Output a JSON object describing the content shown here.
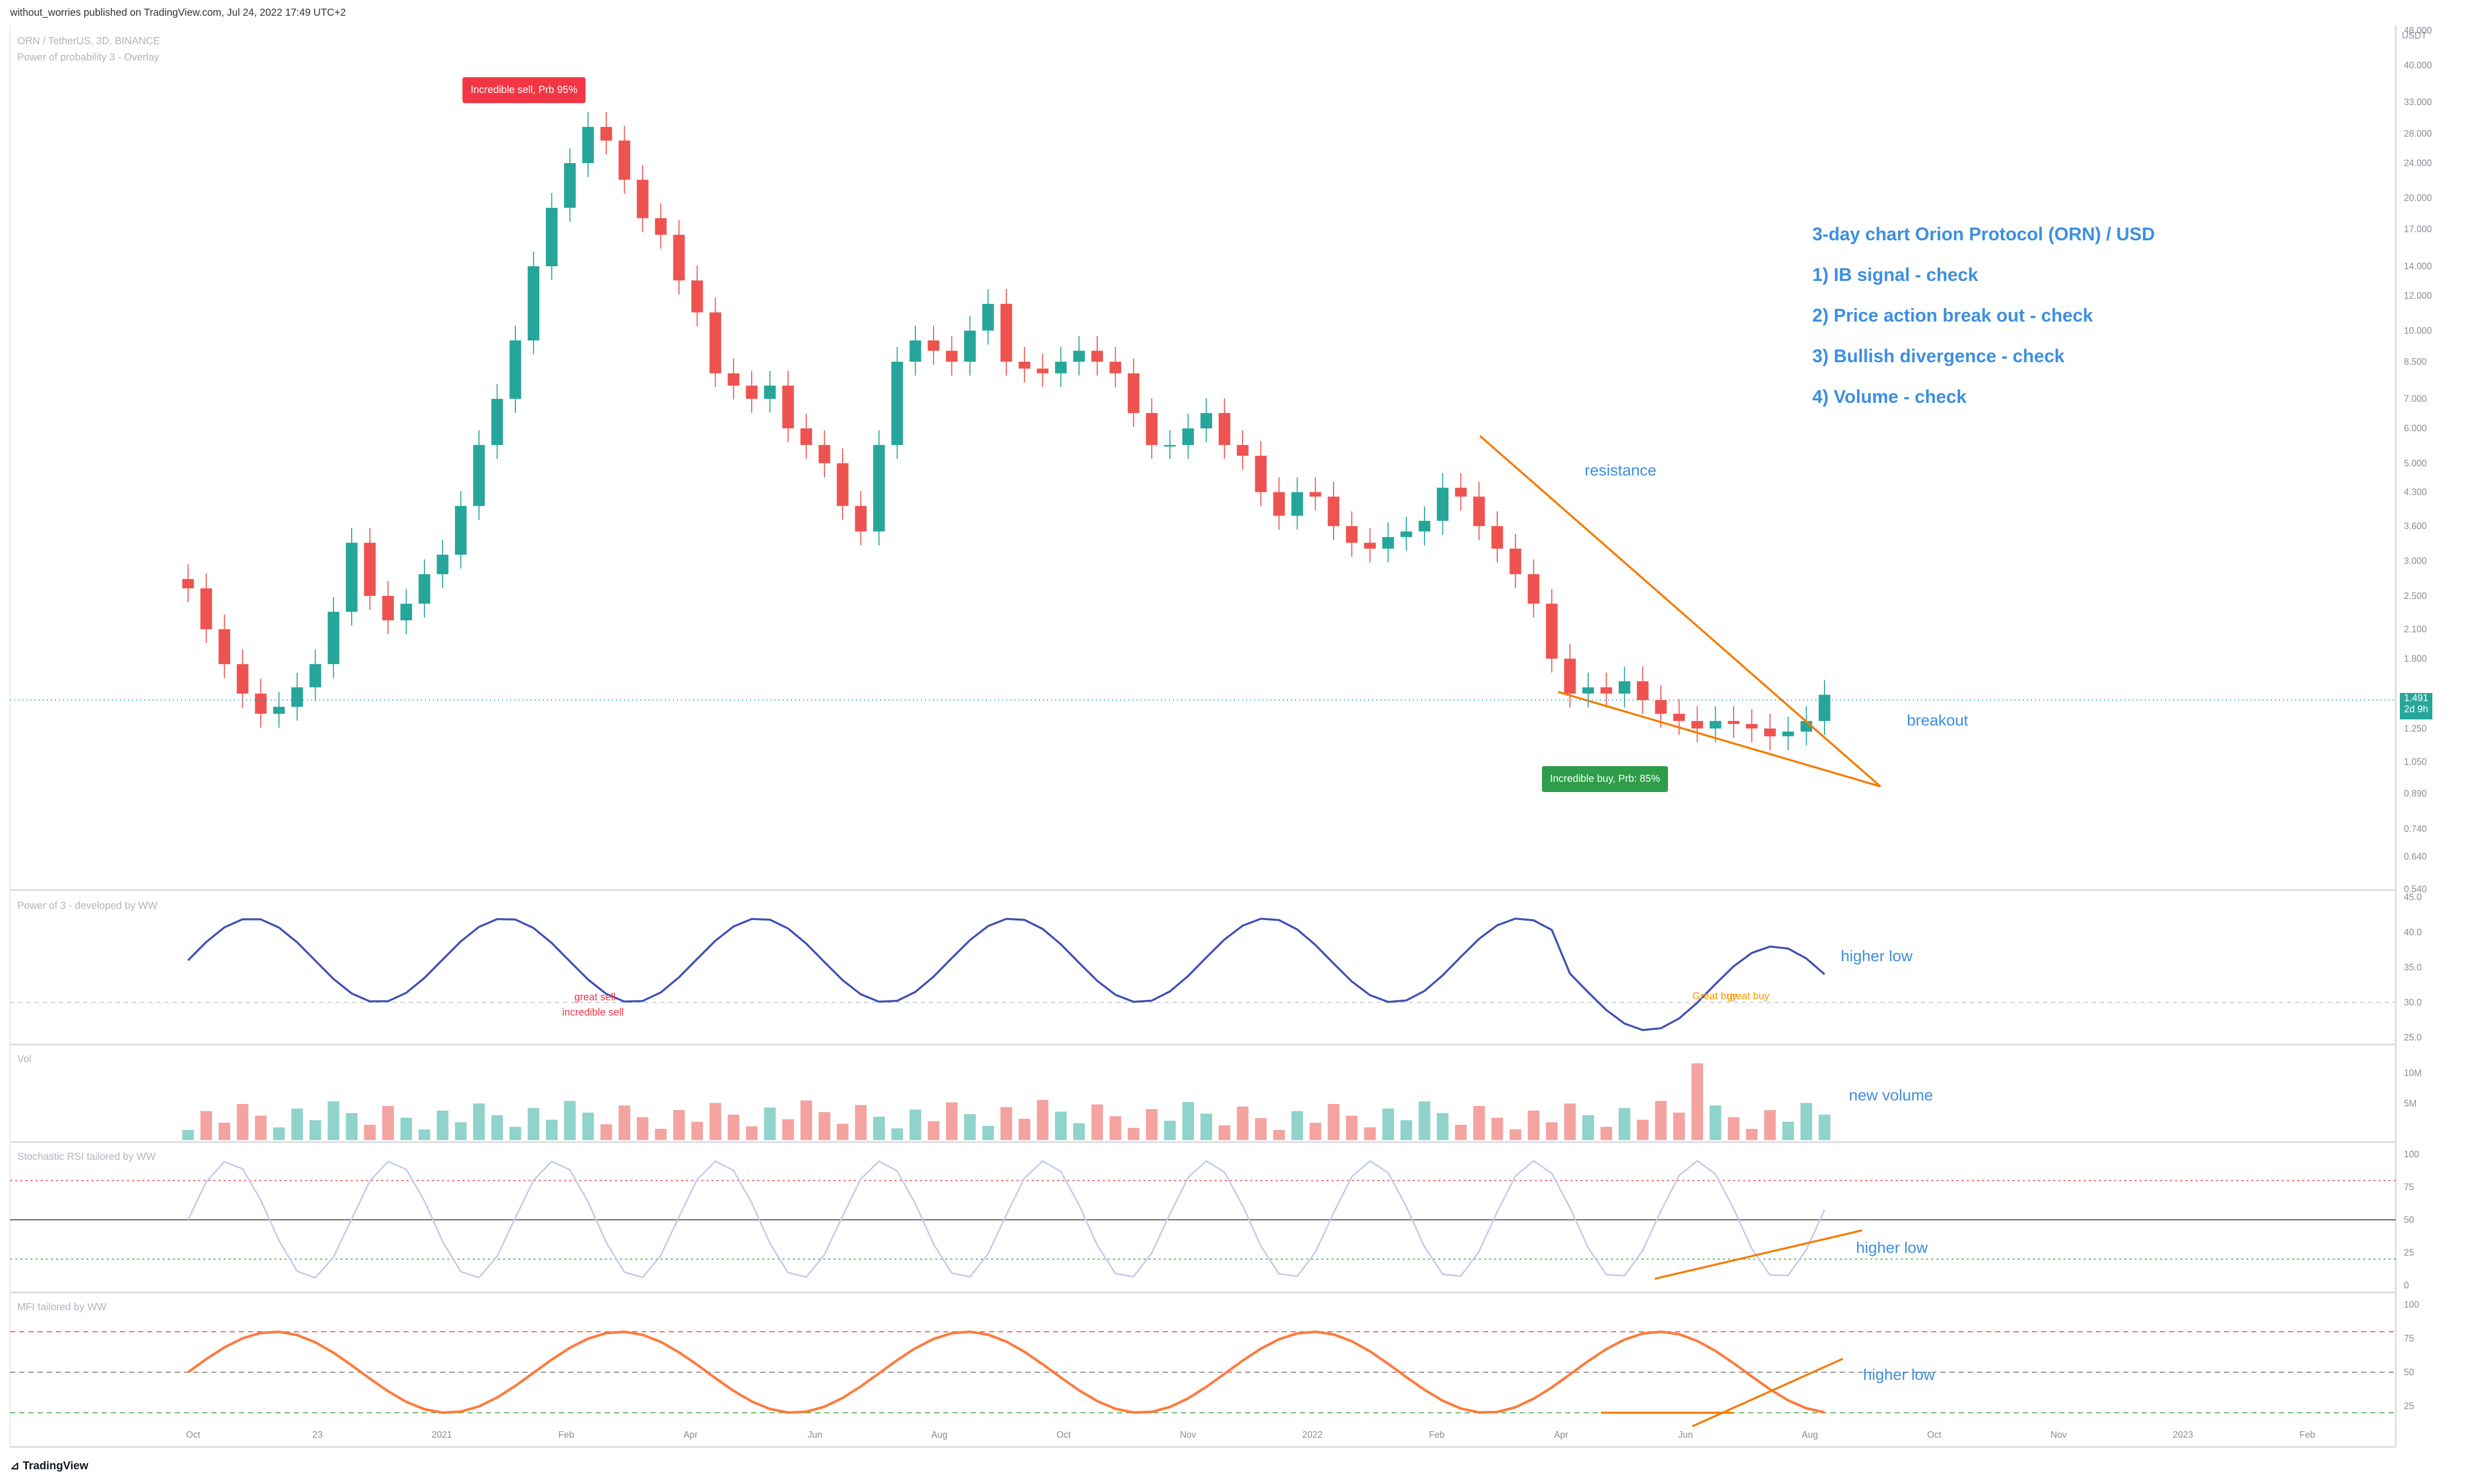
{
  "header": {
    "published_by": "without_worries published on TradingView.com, Jul 24, 2022 17:49 UTC+2",
    "symbol_line": "ORN / TetherUS, 3D, BINANCE",
    "overlay_indicator": "Power of probability 3 - Overlay"
  },
  "annotations": {
    "title": "3-day chart Orion Protocol (ORN) / USD",
    "items": [
      "1) IB signal - check",
      "2) Price action break out - check",
      "3) Bullish divergence - check",
      "4) Volume - check"
    ],
    "resistance": "resistance",
    "breakout": "breakout",
    "higher_low_power": "higher low",
    "new_volume": "new volume",
    "higher_low_stoch": "higher low",
    "higher_low_mfi": "higher low"
  },
  "signals": {
    "sell": "Incredible sell, Prb 95%",
    "buy": "Incredible buy, Prb: 85%",
    "great_sell": "great sell",
    "incredible_sell": "incredible sell",
    "great_buy": "Great buy",
    "great_buy_2": "great buy"
  },
  "price_axis": {
    "unit": "USDT",
    "ticks": [
      "48.000",
      "40.000",
      "33.000",
      "28.000",
      "24.000",
      "20.000",
      "17.000",
      "14.000",
      "12.000",
      "10.000",
      "8.500",
      "7.000",
      "6.000",
      "5.000",
      "4.300",
      "3.600",
      "3.000",
      "2.500",
      "2.100",
      "1.800",
      "1.250",
      "1.050",
      "0.890",
      "0.740",
      "0.640",
      "0.540"
    ],
    "current_price": "1.491",
    "countdown": "2d 9h"
  },
  "panes": {
    "power": {
      "label": "Power of 3 - developed by WW",
      "ticks": [
        "45.0",
        "40.0",
        "35.0",
        "30.0",
        "25.0"
      ]
    },
    "volume": {
      "label": "Vol",
      "ticks": [
        "10M",
        "5M"
      ]
    },
    "stoch": {
      "label": "Stochastic RSI tailored by WW",
      "ticks": [
        "100",
        "75",
        "50",
        "25",
        "0"
      ]
    },
    "mfi": {
      "label": "MFI tailored by WW",
      "ticks": [
        "100",
        "75",
        "50",
        "25"
      ]
    }
  },
  "time_axis": [
    "Oct",
    "23",
    "2021",
    "Feb",
    "Apr",
    "Jun",
    "Aug",
    "Oct",
    "Nov",
    "2022",
    "Feb",
    "Apr",
    "Jun",
    "Aug",
    "Oct",
    "Nov",
    "2023",
    "Feb"
  ],
  "footer": {
    "brand": "TradingView"
  },
  "colors": {
    "up": "#26a69a",
    "down": "#ef5350",
    "trendline": "#f57c00",
    "note": "#3d8fe0",
    "power_line": "#3f51b5",
    "sell_tag": "#f23645",
    "buy_tag": "#2e9d4a"
  },
  "chart_data": {
    "type": "candlestick",
    "log_scale": true,
    "y_unit": "USDT",
    "ylim": [
      0.54,
      48.0
    ],
    "x_labels": [
      "Oct",
      "23",
      "2021",
      "Feb",
      "Apr",
      "Jun",
      "Aug",
      "Oct",
      "Nov",
      "2022",
      "Feb",
      "Apr",
      "Jun",
      "Aug",
      "Oct",
      "Nov",
      "2023",
      "Feb"
    ],
    "candles_approx": {
      "description_points": "approximate closes by phase",
      "closes": [
        2.6,
        2.1,
        1.75,
        1.5,
        1.35,
        1.4,
        1.55,
        1.75,
        2.3,
        3.3,
        2.5,
        2.2,
        2.4,
        2.8,
        3.1,
        4.0,
        5.5,
        7.0,
        9.5,
        14.0,
        19.0,
        24.0,
        29.0,
        27.0,
        22.0,
        18.0,
        16.5,
        13.0,
        11.0,
        8.0,
        7.5,
        7.0,
        7.5,
        6.0,
        5.5,
        5.0,
        4.0,
        3.5,
        5.5,
        8.5,
        9.5,
        9.0,
        8.5,
        10.0,
        11.5,
        8.5,
        8.2,
        8.0,
        8.5,
        9.0,
        8.5,
        8.0,
        6.5,
        5.5,
        5.5,
        6.0,
        6.5,
        5.5,
        5.2,
        4.3,
        3.8,
        4.3,
        4.2,
        3.6,
        3.3,
        3.2,
        3.4,
        3.5,
        3.7,
        4.4,
        4.2,
        3.6,
        3.2,
        2.8,
        2.4,
        1.8,
        1.5,
        1.55,
        1.5,
        1.6,
        1.45,
        1.35,
        1.3,
        1.25,
        1.3,
        1.28,
        1.25,
        1.2,
        1.23,
        1.3,
        1.491
      ]
    },
    "current_price": 1.491,
    "indicators": {
      "power_of_3": {
        "ylim": [
          25,
          45
        ],
        "higher_low": [
          29.5,
          31.5
        ]
      },
      "stoch_rsi": {
        "ylim": [
          0,
          100
        ],
        "levels": [
          80,
          20
        ]
      },
      "mfi": {
        "ylim": [
          0,
          100
        ],
        "levels": [
          80,
          50,
          20
        ]
      }
    }
  }
}
